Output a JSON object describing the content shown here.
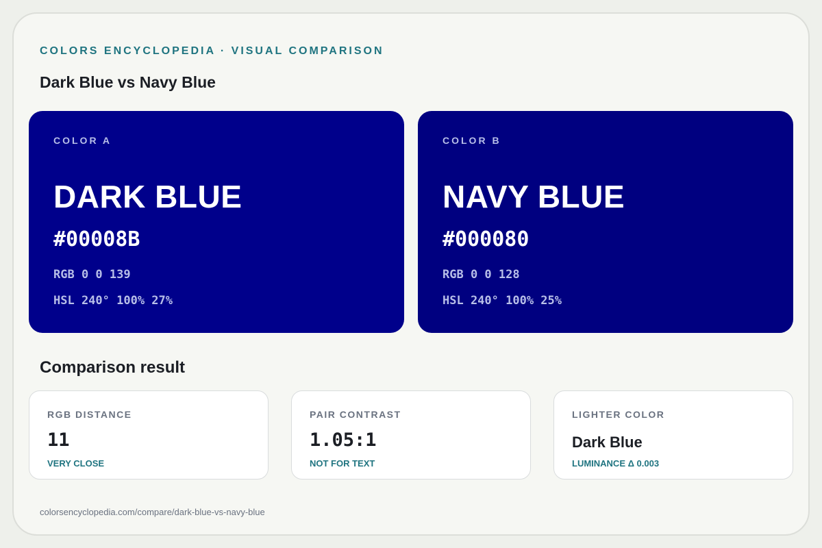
{
  "header": {
    "kicker": "COLORS ENCYCLOPEDIA · VISUAL COMPARISON",
    "title": "Dark Blue vs Navy Blue"
  },
  "colors": [
    {
      "label": "COLOR A",
      "name": "DARK BLUE",
      "hex": "#00008B",
      "rgb": "RGB 0 0 139",
      "hsl": "HSL 240° 100% 27%",
      "swatch_color": "#00008b"
    },
    {
      "label": "COLOR B",
      "name": "NAVY BLUE",
      "hex": "#000080",
      "rgb": "RGB 0 0 128",
      "hsl": "HSL 240° 100% 25%",
      "swatch_color": "#000080"
    }
  ],
  "comparison": {
    "title": "Comparison result",
    "cards": [
      {
        "label": "RGB DISTANCE",
        "value": "11",
        "note": "VERY CLOSE"
      },
      {
        "label": "PAIR CONTRAST",
        "value": "1.05:1",
        "note": "NOT FOR TEXT"
      },
      {
        "label": "LIGHTER COLOR",
        "value": "Dark Blue",
        "note": "LUMINANCE Δ 0.003"
      }
    ]
  },
  "footer": {
    "url": "colorsencyclopedia.com/compare/dark-blue-vs-navy-blue"
  },
  "theme": {
    "accent": "#1f7480",
    "text": "#1b1e24",
    "muted": "#6a7280"
  }
}
